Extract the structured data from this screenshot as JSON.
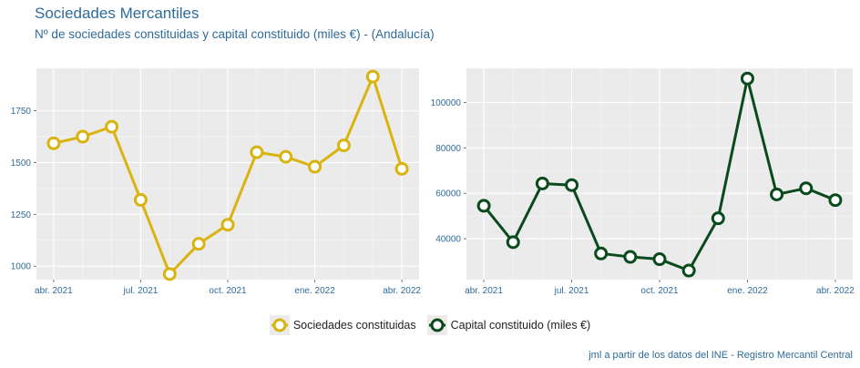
{
  "title": "Sociedades Mercantiles",
  "subtitle": "Nº de sociedades constituidas y capital constituido (miles €) - (Andalucía)",
  "caption": "jml a partir de los datos del INE - Registro Mercantil Central",
  "colors": {
    "sociedades": "#d9b310",
    "capital": "#0a4a1c",
    "panel_bg": "#ebebeb",
    "axis_text": "#2e6b99"
  },
  "legend": [
    {
      "label": "Sociedades constituidas",
      "color": "#d9b310"
    },
    {
      "label": "Capital constituido (miles €)",
      "color": "#0a4a1c"
    }
  ],
  "chart_data": [
    {
      "type": "line",
      "x": [
        "2021-04",
        "2021-05",
        "2021-06",
        "2021-07",
        "2021-08",
        "2021-09",
        "2021-10",
        "2021-11",
        "2021-12",
        "2022-01",
        "2022-02",
        "2022-03",
        "2022-04"
      ],
      "series": [
        {
          "name": "Sociedades constituidas",
          "values": [
            1593,
            1625,
            1673,
            1320,
            962,
            1108,
            1200,
            1550,
            1528,
            1480,
            1583,
            1915,
            1470
          ]
        }
      ],
      "x_tick_labels": [
        "abr. 2021",
        "jul. 2021",
        "oct. 2021",
        "ene. 2022",
        "abr. 2022"
      ],
      "y_ticks": [
        1000,
        1250,
        1500,
        1750
      ],
      "ylim": [
        935,
        1955
      ],
      "grid": true,
      "xlabel": "",
      "ylabel": ""
    },
    {
      "type": "line",
      "x": [
        "2021-04",
        "2021-05",
        "2021-06",
        "2021-07",
        "2021-08",
        "2021-09",
        "2021-10",
        "2021-11",
        "2021-12",
        "2022-01",
        "2022-02",
        "2022-03",
        "2022-04"
      ],
      "series": [
        {
          "name": "Capital constituido (miles €)",
          "values": [
            54500,
            38500,
            64300,
            63600,
            33500,
            32000,
            31000,
            26000,
            49000,
            110500,
            59500,
            62200,
            57000
          ]
        }
      ],
      "x_tick_labels": [
        "abr. 2021",
        "jul. 2021",
        "oct. 2021",
        "ene. 2022",
        "abr. 2022"
      ],
      "y_ticks": [
        40000,
        60000,
        80000,
        100000
      ],
      "ylim": [
        22000,
        115000
      ],
      "grid": true,
      "xlabel": "",
      "ylabel": ""
    }
  ]
}
